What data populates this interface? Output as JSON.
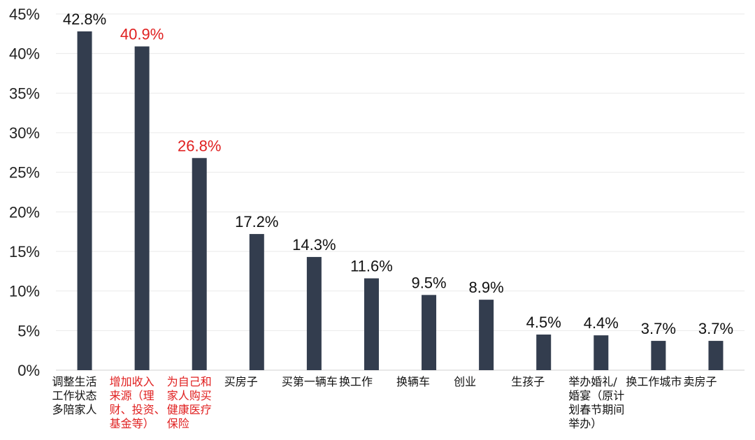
{
  "chart_data": {
    "type": "bar",
    "title": "",
    "xlabel": "",
    "ylabel": "",
    "ylim": [
      0,
      45
    ],
    "yticks": [
      "0%",
      "5%",
      "10%",
      "15%",
      "20%",
      "25%",
      "30%",
      "35%",
      "40%",
      "45%"
    ],
    "grid": true,
    "legend": "none",
    "bar_color": "#333d4e",
    "highlight_color": "#e02020",
    "normal_text_color": "#111111",
    "categories": [
      [
        "调整生活",
        "工作状态",
        "多陪家人"
      ],
      [
        "增加收入",
        "来源（理",
        "财、投资、",
        "基金等）"
      ],
      [
        "为自己和",
        "家人购买",
        "健康医疗",
        "保险"
      ],
      [
        "买房子"
      ],
      [
        "买第一辆车"
      ],
      [
        "换工作"
      ],
      [
        "换辆车"
      ],
      [
        "创业"
      ],
      [
        "生孩子"
      ],
      [
        "举办婚礼/",
        "婚宴（原计",
        "划春节期间",
        "举办）"
      ],
      [
        "换工作城市"
      ],
      [
        "卖房子"
      ]
    ],
    "values": [
      42.8,
      40.9,
      26.8,
      17.2,
      14.3,
      11.6,
      9.5,
      8.9,
      4.5,
      4.4,
      3.7,
      3.7
    ],
    "value_labels": [
      "42.8%",
      "40.9%",
      "26.8%",
      "17.2%",
      "14.3%",
      "11.6%",
      "9.5%",
      "8.9%",
      "4.5%",
      "4.4%",
      "3.7%",
      "3.7%"
    ],
    "highlighted": [
      false,
      true,
      true,
      false,
      false,
      false,
      false,
      false,
      false,
      false,
      false,
      false
    ]
  }
}
